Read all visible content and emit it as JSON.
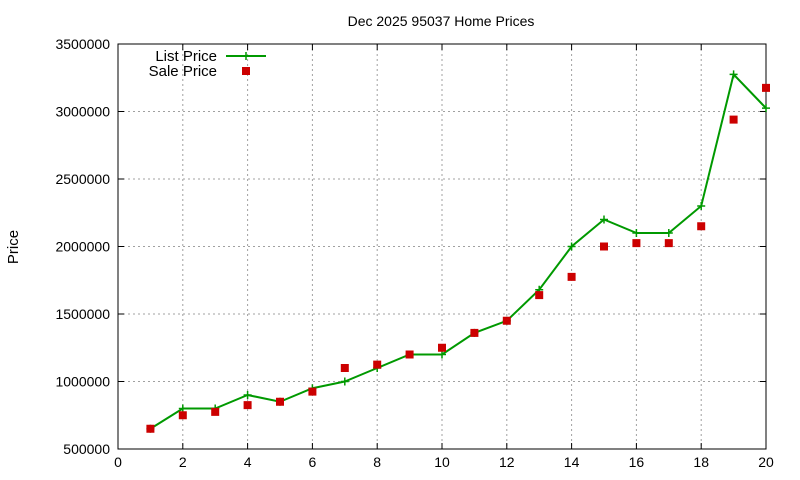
{
  "chart_data": {
    "type": "line",
    "title": "Dec 2025 95037 Home Prices",
    "xlabel": "",
    "ylabel": "Price",
    "xlim": [
      0,
      20
    ],
    "ylim": [
      500000,
      3500000
    ],
    "x_ticks": [
      0,
      2,
      4,
      6,
      8,
      10,
      12,
      14,
      16,
      18,
      20
    ],
    "y_ticks": [
      500000,
      1000000,
      1500000,
      2000000,
      2500000,
      3000000,
      3500000
    ],
    "grid": true,
    "legend_position": "top-left",
    "series": [
      {
        "name": "List Price",
        "style": "line-with-plus-markers",
        "color": "#009900",
        "points": [
          [
            1,
            650000
          ],
          [
            2,
            800000
          ],
          [
            3,
            800000
          ],
          [
            4,
            900000
          ],
          [
            5,
            850000
          ],
          [
            6,
            950000
          ],
          [
            7,
            1000000
          ],
          [
            8,
            1100000
          ],
          [
            9,
            1200000
          ],
          [
            10,
            1200000
          ],
          [
            11,
            1360000
          ],
          [
            12,
            1450000
          ],
          [
            13,
            1680000
          ],
          [
            14,
            2000000
          ],
          [
            15,
            2200000
          ],
          [
            16,
            2100000
          ],
          [
            17,
            2100000
          ],
          [
            18,
            2300000
          ],
          [
            19,
            3275000
          ],
          [
            20,
            3025000
          ]
        ]
      },
      {
        "name": "Sale Price",
        "style": "square-markers",
        "color": "#cc0000",
        "points": [
          [
            1,
            650000
          ],
          [
            2,
            750000
          ],
          [
            3,
            775000
          ],
          [
            4,
            825000
          ],
          [
            5,
            850000
          ],
          [
            6,
            925000
          ],
          [
            7,
            1100000
          ],
          [
            8,
            1125000
          ],
          [
            9,
            1200000
          ],
          [
            10,
            1250000
          ],
          [
            11,
            1360000
          ],
          [
            12,
            1450000
          ],
          [
            13,
            1640000
          ],
          [
            14,
            1775000
          ],
          [
            15,
            2000000
          ],
          [
            16,
            2025000
          ],
          [
            17,
            2025000
          ],
          [
            18,
            2150000
          ],
          [
            19,
            2940000
          ],
          [
            20,
            3175000
          ]
        ]
      }
    ]
  }
}
